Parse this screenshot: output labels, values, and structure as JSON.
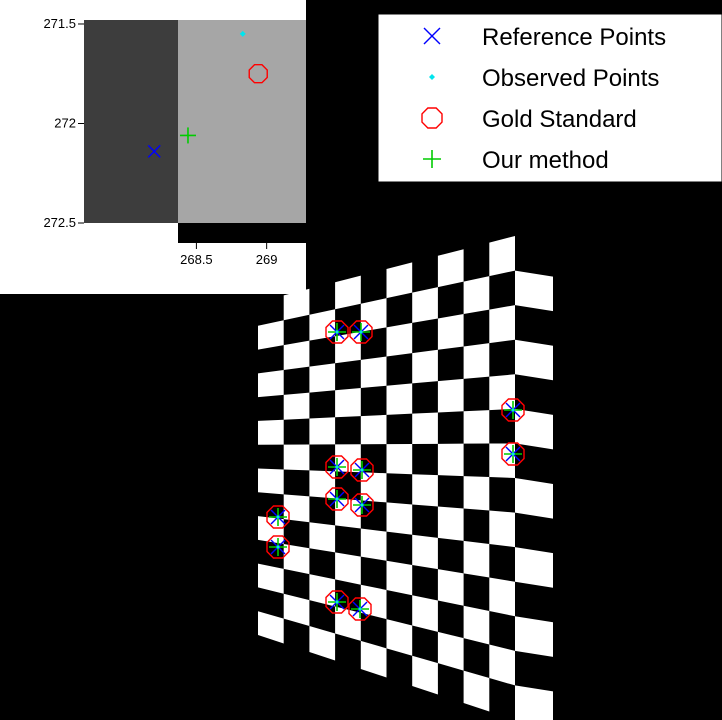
{
  "scene": {
    "background_color": "#000000",
    "checker_colors": [
      "#ffffff",
      "#000000"
    ]
  },
  "chart_data": {
    "type": "scatter",
    "title": "",
    "xlabel": "",
    "ylabel": "",
    "xlim": [
      267.7,
      269.28
    ],
    "ylim": [
      271.48,
      272.5
    ],
    "y_inverted": true,
    "xticks": [
      {
        "value": 268.5,
        "label": "268.5"
      },
      {
        "value": 269,
        "label": "269"
      }
    ],
    "yticks": [
      {
        "value": 271.5,
        "label": "271.5"
      },
      {
        "value": 272,
        "label": "272"
      },
      {
        "value": 272.5,
        "label": "272.5"
      }
    ],
    "grid": false,
    "series": [
      {
        "name": "Reference Points",
        "marker": "x-cross",
        "color": "#0000ff",
        "points": [
          [
            268.2,
            272.14
          ]
        ]
      },
      {
        "name": "Observed Points",
        "marker": "diamond",
        "color": "#00e5ee",
        "points": [
          [
            268.83,
            271.55
          ]
        ]
      },
      {
        "name": "Gold Standard",
        "marker": "circle",
        "color": "#ff0000",
        "points": [
          [
            268.94,
            271.75
          ]
        ]
      },
      {
        "name": "Our method",
        "marker": "plus",
        "color": "#00cc00",
        "points": [
          [
            268.44,
            272.06
          ]
        ]
      }
    ],
    "legend": {
      "placement": "top-right",
      "entries": [
        "Reference Points",
        "Observed Points",
        "Gold Standard",
        "Our method"
      ]
    },
    "inset_shading": {
      "dark": "#3d3d3d",
      "light": "#a6a6a6"
    }
  }
}
